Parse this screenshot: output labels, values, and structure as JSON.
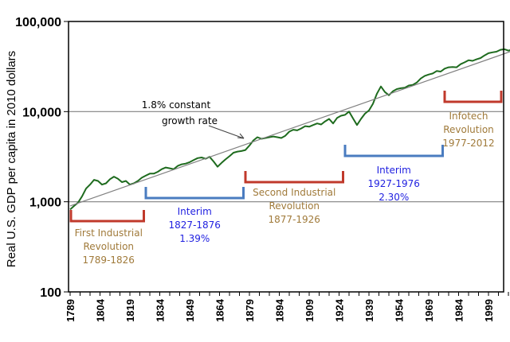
{
  "chart_data": {
    "type": "line",
    "title": "",
    "xlabel": "",
    "ylabel": "Real U.S. GDP per capita in 2010 dollars",
    "yscale": "log",
    "ylim": [
      100,
      100000
    ],
    "xlim": [
      1789,
      2012
    ],
    "grid": "horizontal at major log ticks",
    "y_ticks": [
      "100",
      "1,000",
      "10,000",
      "100,000"
    ],
    "y_tick_values": [
      100,
      1000,
      10000,
      100000
    ],
    "x_ticks": [
      "1789",
      "1804",
      "1819",
      "1834",
      "1849",
      "1864",
      "1879",
      "1894",
      "1909",
      "1924",
      "1939",
      "1954",
      "1969",
      "1984",
      "1999"
    ],
    "series": [
      {
        "name": "Real U.S. GDP per capita",
        "color": "#1e6b1e",
        "x": [
          1789,
          1791,
          1793,
          1795,
          1797,
          1799,
          1801,
          1803,
          1805,
          1807,
          1809,
          1811,
          1813,
          1815,
          1817,
          1819,
          1821,
          1823,
          1825,
          1827,
          1829,
          1831,
          1833,
          1835,
          1837,
          1839,
          1841,
          1843,
          1845,
          1847,
          1849,
          1851,
          1853,
          1855,
          1857,
          1859,
          1861,
          1863,
          1865,
          1867,
          1869,
          1871,
          1873,
          1875,
          1877,
          1879,
          1881,
          1883,
          1885,
          1887,
          1889,
          1891,
          1893,
          1895,
          1897,
          1899,
          1901,
          1903,
          1905,
          1907,
          1909,
          1911,
          1913,
          1915,
          1917,
          1919,
          1921,
          1923,
          1925,
          1927,
          1929,
          1931,
          1933,
          1935,
          1937,
          1939,
          1941,
          1943,
          1945,
          1947,
          1949,
          1951,
          1953,
          1955,
          1957,
          1959,
          1961,
          1963,
          1965,
          1967,
          1969,
          1971,
          1973,
          1975,
          1977,
          1979,
          1981,
          1983,
          1985,
          1987,
          1989,
          1991,
          1993,
          1995,
          1997,
          1999,
          2001,
          2003,
          2005,
          2007,
          2009,
          2011,
          2012
        ],
        "values": [
          820,
          900,
          980,
          1150,
          1400,
          1550,
          1750,
          1700,
          1550,
          1600,
          1780,
          1900,
          1800,
          1650,
          1700,
          1550,
          1600,
          1700,
          1850,
          1950,
          2050,
          2050,
          2150,
          2300,
          2400,
          2350,
          2300,
          2500,
          2600,
          2650,
          2750,
          2900,
          3050,
          3100,
          3000,
          3150,
          2800,
          2450,
          2700,
          2950,
          3200,
          3500,
          3600,
          3650,
          3750,
          4200,
          4800,
          5200,
          5000,
          5100,
          5200,
          5300,
          5200,
          5100,
          5400,
          6000,
          6300,
          6200,
          6500,
          6900,
          6800,
          7100,
          7400,
          7200,
          7800,
          8300,
          7400,
          8500,
          9000,
          9200,
          10000,
          8400,
          7100,
          8300,
          9500,
          10300,
          12200,
          15800,
          19000,
          16500,
          15200,
          16800,
          17800,
          18200,
          18400,
          19500,
          19800,
          21000,
          23300,
          24900,
          25800,
          26500,
          28200,
          27800,
          30000,
          31000,
          31200,
          31000,
          33600,
          35200,
          37200,
          36600,
          38000,
          39300,
          42000,
          44500,
          45500,
          46200,
          48500,
          49200,
          47400,
          49000,
          49500
        ]
      },
      {
        "name": "1.8% constant growth rate",
        "color": "#808080",
        "x": [
          1789,
          2012
        ],
        "values": [
          900,
          48000
        ]
      }
    ],
    "annotations": [
      {
        "text": "1.8% constant growth rate",
        "lines": [
          "1.8% constant",
          "growth rate"
        ],
        "arrow_to_year": 1877,
        "color": "#000000"
      }
    ],
    "periods": [
      {
        "name": "First Industrial Revolution",
        "lines": [
          "First Industrial",
          "Revolution",
          "1789-1826"
        ],
        "start": 1789,
        "end": 1826,
        "color": "#c0392b",
        "text_color": "#a07a3a"
      },
      {
        "name": "Interim",
        "lines": [
          "Interim",
          "1827-1876",
          "1.39%"
        ],
        "start": 1827,
        "end": 1876,
        "color": "#4a7cc0",
        "text_color": "#1f1fe0"
      },
      {
        "name": "Second Industrial Revolution",
        "lines": [
          "Second Industrial",
          "Revolution",
          "1877-1926"
        ],
        "start": 1877,
        "end": 1926,
        "color": "#c0392b",
        "text_color": "#a07a3a"
      },
      {
        "name": "Interim",
        "lines": [
          "Interim",
          "1927-1976",
          "2.30%"
        ],
        "start": 1927,
        "end": 1976,
        "color": "#4a7cc0",
        "text_color": "#1f1fe0"
      },
      {
        "name": "Infotech Revolution",
        "lines": [
          "Infotech",
          "Revolution",
          "1977-2012"
        ],
        "start": 1977,
        "end": 2012,
        "color": "#c0392b",
        "text_color": "#a07a3a"
      }
    ]
  }
}
